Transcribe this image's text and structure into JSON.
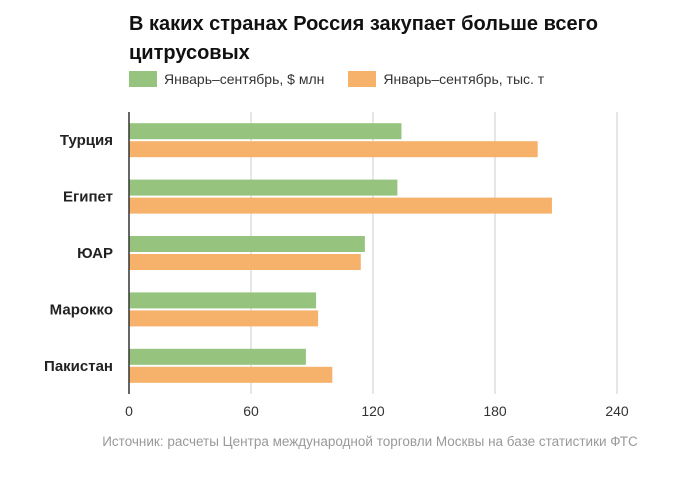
{
  "chart_data": {
    "type": "bar",
    "orientation": "horizontal",
    "title": "В каких странах Россия закупает больше всего цитрусовых",
    "categories": [
      "Турция",
      "Египет",
      "ЮАР",
      "Марокко",
      "Пакистан"
    ],
    "series": [
      {
        "name": "Январь–сентябрь, $ млн",
        "color": "#96c47e",
        "values": [
          134,
          132,
          116,
          92,
          87
        ]
      },
      {
        "name": "Январь–сентябрь, тыс. т",
        "color": "#f6b26b",
        "values": [
          201,
          208,
          114,
          93,
          100
        ]
      }
    ],
    "xlim": [
      0,
      240
    ],
    "xticks": [
      0,
      60,
      120,
      180,
      240
    ],
    "xlabel": "",
    "ylabel": "",
    "grid": true,
    "legend_position": "top-left",
    "source": "Источник: расчеты Центра международной торговли Москвы на базе статистики ФТС"
  },
  "colors": {
    "grid": "#dddddd",
    "axis": "#333333"
  }
}
